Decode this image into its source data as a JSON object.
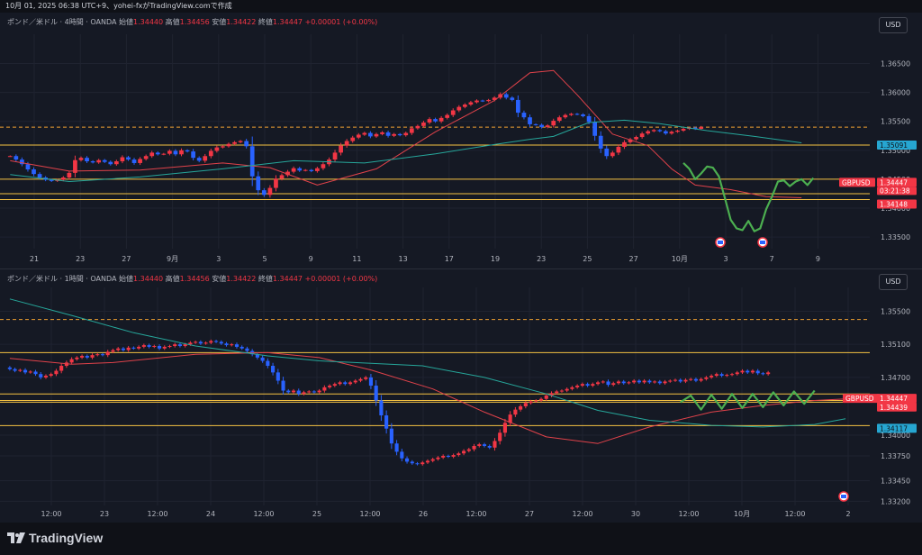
{
  "topbar": "10月 01, 2025 06:38 UTC+9、yohei-fxがTradingView.comで作成",
  "currency_button": "USD",
  "footer": {
    "logo_text": "TradingView"
  },
  "colors": {
    "bg": "#151924",
    "up": "#f23645",
    "down": "#2962ff",
    "red_ma": "#e0424a",
    "teal_ma": "#26a69a",
    "level": "#f5c242",
    "green_path": "#4caf50"
  },
  "chart_data": [
    {
      "type": "candlestick",
      "header": {
        "symbol": "ポンド／米ドル · 4時間 · OANDA",
        "open_label": "始値",
        "open": "1.34440",
        "high_label": "高値",
        "high": "1.34456",
        "low_label": "安値",
        "low": "1.34422",
        "close_label": "終値",
        "close": "1.34447",
        "change": "+0.00001 (+0.00%)"
      },
      "ylim": [
        1.333,
        1.3685
      ],
      "y_ticks": [
        "1.36500",
        "1.36000",
        "1.35500",
        "1.35000",
        "1.34500",
        "1.34000",
        "1.33500"
      ],
      "x_ticks": [
        "21",
        "23",
        "27",
        "9月",
        "3",
        "5",
        "9",
        "11",
        "13",
        "17",
        "19",
        "23",
        "25",
        "27",
        "10月",
        "3",
        "7",
        "9"
      ],
      "price_labels": {
        "symbol_tag": "GBPUSD",
        "last": "1.34447",
        "countdown": "03:21:38",
        "level_low": "1.34148",
        "level_high": "1.35091"
      },
      "levels": [
        1.35091,
        1.345,
        1.3425,
        1.34148
      ],
      "dashed_level": 1.354,
      "moves": [
        0,
        -0.0006,
        -0.0008,
        -0.0009,
        -0.0008,
        -0.0006,
        -0.0004,
        -0.0002,
        0.0002,
        0.0004,
        0.0008,
        0.0022,
        0.0004,
        -0.0006,
        -0.0002,
        0.0004,
        -0.0003,
        -0.0004,
        0.0005,
        0.0007,
        -0.0004,
        -0.0006,
        0.0007,
        0.0005,
        0.0006,
        -0.0003,
        0.0001,
        0.0005,
        -0.0006,
        0.0007,
        -0.0002,
        -0.0011,
        -0.0005,
        0.0008,
        0.0009,
        0.0006,
        0.0002,
        0.0004,
        0.0003,
        0.0002,
        -0.0009,
        -0.0052,
        -0.0024,
        -0.0008,
        0.0012,
        0.0016,
        0.0006,
        0.0006,
        0.0006,
        -0.0004,
        0.0001,
        -0.0002,
        0.0005,
        0.0007,
        0.0008,
        0.0012,
        0.0012,
        0.0008,
        0.0006,
        0.0005,
        0.0003,
        -0.0006,
        0.0004,
        0.0003,
        -0.0006,
        0.0003,
        -0.0002,
        0.0004,
        0.0008,
        0.0004,
        0.0006,
        0.0006,
        -0.0004,
        0.0006,
        0.0005,
        0.0008,
        0.0006,
        0.0004,
        0.0004,
        0.0003,
        -0.0001,
        0.0002,
        0.0004,
        0.0006,
        -0.0006,
        -0.0004,
        -0.0022,
        -0.0008,
        -0.0012,
        -0.0001,
        -0.0004,
        0.0003,
        0.0008,
        0.0006,
        0.0004,
        0.0002,
        -0.0001,
        -0.0003,
        -0.001,
        -0.0024,
        -0.0022,
        -0.0013,
        0.0006,
        0.001,
        0.0008,
        0.0005,
        0.0004,
        0.0006,
        0.0004,
        0.0002,
        -0.0002,
        -0.0004,
        0.0003,
        0.0002,
        0.0003,
        0.0002,
        -0.0002,
        0.0003
      ],
      "start": 1.349,
      "ma_red": [
        [
          0,
          1.3482
        ],
        [
          10,
          1.3464
        ],
        [
          22,
          1.3466
        ],
        [
          36,
          1.3478
        ],
        [
          44,
          1.347
        ],
        [
          52,
          1.344
        ],
        [
          62,
          1.3468
        ],
        [
          72,
          1.3532
        ],
        [
          82,
          1.3586
        ],
        [
          88,
          1.3634
        ],
        [
          92,
          1.3638
        ],
        [
          96,
          1.3596
        ],
        [
          102,
          1.3528
        ],
        [
          108,
          1.3508
        ],
        [
          112,
          1.3468
        ],
        [
          116,
          1.344
        ],
        [
          122,
          1.3432
        ],
        [
          128,
          1.342
        ],
        [
          134,
          1.3418
        ]
      ],
      "ma_teal": [
        [
          0,
          1.3458
        ],
        [
          10,
          1.3446
        ],
        [
          22,
          1.3454
        ],
        [
          36,
          1.3468
        ],
        [
          48,
          1.3482
        ],
        [
          60,
          1.3478
        ],
        [
          72,
          1.3494
        ],
        [
          82,
          1.351
        ],
        [
          88,
          1.3519
        ],
        [
          92,
          1.3524
        ],
        [
          98,
          1.3548
        ],
        [
          104,
          1.3552
        ],
        [
          110,
          1.3546
        ],
        [
          118,
          1.3534
        ],
        [
          126,
          1.3524
        ],
        [
          134,
          1.3513
        ]
      ],
      "green_path": [
        [
          114,
          1.3478
        ],
        [
          115,
          1.3468
        ],
        [
          116,
          1.345
        ],
        [
          117,
          1.346
        ],
        [
          118,
          1.3472
        ],
        [
          119,
          1.347
        ],
        [
          120,
          1.3455
        ],
        [
          121,
          1.3418
        ],
        [
          122,
          1.338
        ],
        [
          123,
          1.3365
        ],
        [
          124,
          1.3362
        ],
        [
          125,
          1.3378
        ],
        [
          126,
          1.336
        ],
        [
          127,
          1.3365
        ],
        [
          128,
          1.3398
        ],
        [
          129,
          1.342
        ],
        [
          130,
          1.3446
        ],
        [
          131,
          1.3448
        ],
        [
          132,
          1.3438
        ],
        [
          133,
          1.3446
        ],
        [
          134,
          1.345
        ],
        [
          135,
          1.344
        ],
        [
          136,
          1.3452
        ]
      ]
    },
    {
      "type": "candlestick",
      "header": {
        "symbol": "ポンド／米ドル · 1時間 · OANDA",
        "open_label": "始値",
        "open": "1.34440",
        "high_label": "高値",
        "high": "1.34456",
        "low_label": "安値",
        "low": "1.34422",
        "close_label": "終値",
        "close": "1.34447",
        "change": "+0.00001 (+0.00%)"
      },
      "ylim": [
        1.3315,
        1.3568
      ],
      "y_ticks": [
        "1.35500",
        "1.35100",
        "1.34700",
        "1.34000",
        "1.33750",
        "1.33450",
        "1.33200"
      ],
      "x_ticks": [
        "12:00",
        "23",
        "12:00",
        "24",
        "12:00",
        "25",
        "12:00",
        "26",
        "12:00",
        "27",
        "12:00",
        "30",
        "12:00",
        "10月",
        "12:00",
        "2"
      ],
      "price_labels": {
        "symbol_tag": "GBPUSD",
        "last": "1.34447",
        "countdown": "21:38",
        "level_mid": "1.34439",
        "level_low": "1.34117"
      },
      "levels": [
        1.35,
        1.345,
        1.3442,
        1.344,
        1.34117
      ],
      "dashed_level": 1.354,
      "start": 1.3482,
      "moves": [
        -0.0002,
        -0.0002,
        0.0001,
        -0.0003,
        0.0001,
        -0.0003,
        -0.0004,
        0.0002,
        0.0002,
        0.0004,
        0.0006,
        0.0004,
        0.0004,
        0.0002,
        0.0002,
        -0.0002,
        0.0003,
        0.0001,
        -0.0001,
        0.0004,
        0.0002,
        0.0002,
        -0.0002,
        0.0003,
        -0.0001,
        0.0002,
        0.0002,
        -0.0002,
        0.0001,
        -0.0003,
        0.0002,
        0.0001,
        0.0002,
        -0.0002,
        0.0002,
        0.0002,
        0.0001,
        -0.0002,
        0.0001,
        0.0002,
        -0.0001,
        -0.0002,
        -0.0002,
        0.0001,
        -0.0003,
        -0.0002,
        -0.0003,
        -0.0004,
        -0.0004,
        -0.0004,
        -0.0006,
        -0.0008,
        -0.001,
        -0.0012,
        -0.0002,
        0.0002,
        -0.0004,
        0.0002,
        0.0001,
        -0.0001,
        0.0002,
        0.0004,
        0.0002,
        0.0002,
        0.0002,
        -0.0002,
        0.0002,
        0.0002,
        0.0002,
        0.0002,
        -0.001,
        -0.0018,
        -0.0018,
        -0.0016,
        -0.0018,
        -0.001,
        -0.0008,
        -0.0004,
        -0.0002,
        -0.0001,
        0.0002,
        0.0002,
        0.0002,
        0.0002,
        0.0002,
        -0.0001,
        0.0002,
        0.0002,
        0.0003,
        0.0002,
        0.0004,
        0.0002,
        -0.0002,
        -0.0002,
        0.0008,
        0.001,
        0.0012,
        0.001,
        0.0006,
        0.0004,
        0.0004,
        0.0002,
        0.0001,
        0.0002,
        0.0004,
        0.0003,
        0.0002,
        0.0001,
        0.0002,
        0.0002,
        0.0002,
        0.0002,
        -0.0002,
        0.0002,
        0.0002,
        0.0001,
        -0.0004,
        0.0002,
        0.0002,
        -0.0002,
        0.0001,
        0.0002,
        -0.0002,
        0.0002,
        -0.0002,
        0.0001,
        -0.0002,
        0.0002,
        0.0001,
        0.0001,
        -0.0002,
        0.0002,
        0.0001,
        -0.0002,
        0.0002,
        0.0002,
        0.0002,
        0.0002,
        -0.0002,
        0.0001,
        0.0001,
        0.0002,
        0.0002,
        -0.0002,
        0.0002,
        -0.0003,
        -0.0001,
        0.0002
      ],
      "ma_red": [
        [
          0,
          1.3493
        ],
        [
          12,
          1.3486
        ],
        [
          20,
          1.3488
        ],
        [
          36,
          1.3498
        ],
        [
          50,
          1.35
        ],
        [
          60,
          1.3494
        ],
        [
          70,
          1.3479
        ],
        [
          82,
          1.3456
        ],
        [
          92,
          1.3428
        ],
        [
          104,
          1.3398
        ],
        [
          114,
          1.339
        ],
        [
          124,
          1.341
        ],
        [
          136,
          1.3428
        ],
        [
          146,
          1.3436
        ],
        [
          156,
          1.3442
        ],
        [
          162,
          1.3444
        ]
      ],
      "ma_teal": [
        [
          0,
          1.3565
        ],
        [
          12,
          1.3545
        ],
        [
          24,
          1.3524
        ],
        [
          36,
          1.3508
        ],
        [
          50,
          1.3496
        ],
        [
          60,
          1.349
        ],
        [
          70,
          1.3487
        ],
        [
          80,
          1.3484
        ],
        [
          92,
          1.347
        ],
        [
          104,
          1.345
        ],
        [
          114,
          1.343
        ],
        [
          124,
          1.3418
        ],
        [
          136,
          1.3412
        ],
        [
          146,
          1.341
        ],
        [
          156,
          1.3413
        ],
        [
          162,
          1.342
        ]
      ],
      "green_path": [
        [
          130,
          1.344
        ],
        [
          132,
          1.3448
        ],
        [
          134,
          1.3431
        ],
        [
          136,
          1.3449
        ],
        [
          138,
          1.3432
        ],
        [
          140,
          1.345
        ],
        [
          142,
          1.3433
        ],
        [
          144,
          1.345
        ],
        [
          146,
          1.3434
        ],
        [
          148,
          1.3452
        ],
        [
          150,
          1.3436
        ],
        [
          152,
          1.3453
        ],
        [
          154,
          1.3438
        ],
        [
          156,
          1.3454
        ]
      ]
    }
  ]
}
